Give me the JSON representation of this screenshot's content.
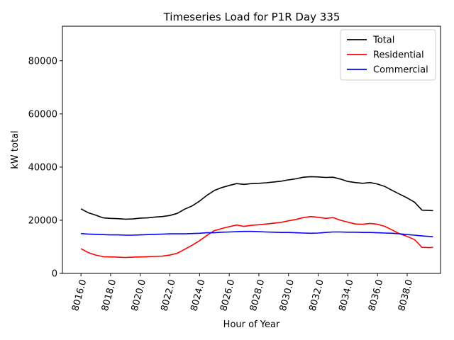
{
  "chart_data": {
    "type": "line",
    "title": "Timeseries Load for P1R   Day 335",
    "xlabel": "Hour of Year",
    "ylabel": "kW total",
    "xlim": [
      8014.75,
      8040.25
    ],
    "ylim": [
      0,
      93000
    ],
    "xticks": [
      8016,
      8018,
      8020,
      8022,
      8024,
      8026,
      8028,
      8030,
      8032,
      8034,
      8036,
      8038
    ],
    "xtick_labels": [
      "8016.0",
      "8018.0",
      "8020.0",
      "8022.0",
      "8024.0",
      "8026.0",
      "8028.0",
      "8030.0",
      "8032.0",
      "8034.0",
      "8036.0",
      "8038.0"
    ],
    "yticks": [
      0,
      20000,
      40000,
      60000,
      80000
    ],
    "ytick_labels": [
      "0",
      "20000",
      "40000",
      "60000",
      "80000"
    ],
    "legend_position": "top-right",
    "series": [
      {
        "name": "Total",
        "color": "#000000",
        "points": [
          [
            8016,
            24300
          ],
          [
            8016.5,
            22800
          ],
          [
            8017,
            21900
          ],
          [
            8017.5,
            20900
          ],
          [
            8018,
            20700
          ],
          [
            8018.5,
            20600
          ],
          [
            8019,
            20400
          ],
          [
            8019.5,
            20500
          ],
          [
            8020,
            20800
          ],
          [
            8020.5,
            20900
          ],
          [
            8021,
            21200
          ],
          [
            8021.5,
            21400
          ],
          [
            8022,
            21800
          ],
          [
            8022.5,
            22600
          ],
          [
            8023,
            24200
          ],
          [
            8023.5,
            25400
          ],
          [
            8024,
            27200
          ],
          [
            8024.5,
            29400
          ],
          [
            8025,
            31200
          ],
          [
            8025.5,
            32300
          ],
          [
            8026,
            33100
          ],
          [
            8026.5,
            33800
          ],
          [
            8027,
            33500
          ],
          [
            8027.5,
            33800
          ],
          [
            8028,
            33900
          ],
          [
            8028.5,
            34100
          ],
          [
            8029,
            34400
          ],
          [
            8029.5,
            34700
          ],
          [
            8030,
            35200
          ],
          [
            8030.5,
            35600
          ],
          [
            8031,
            36200
          ],
          [
            8031.5,
            36400
          ],
          [
            8032,
            36300
          ],
          [
            8032.5,
            36100
          ],
          [
            8033,
            36200
          ],
          [
            8033.5,
            35500
          ],
          [
            8034,
            34600
          ],
          [
            8034.5,
            34200
          ],
          [
            8035,
            33900
          ],
          [
            8035.5,
            34200
          ],
          [
            8036,
            33600
          ],
          [
            8036.5,
            32700
          ],
          [
            8037,
            31200
          ],
          [
            8037.5,
            29800
          ],
          [
            8038,
            28400
          ],
          [
            8038.5,
            26800
          ],
          [
            8039,
            23800
          ],
          [
            8039.5,
            23700
          ],
          [
            8039.75,
            23600
          ]
        ]
      },
      {
        "name": "Residential",
        "color": "#ff0000",
        "points": [
          [
            8016,
            9300
          ],
          [
            8016.5,
            7800
          ],
          [
            8017,
            6900
          ],
          [
            8017.5,
            6300
          ],
          [
            8018,
            6200
          ],
          [
            8018.5,
            6100
          ],
          [
            8019,
            6000
          ],
          [
            8019.5,
            6100
          ],
          [
            8020,
            6200
          ],
          [
            8020.5,
            6300
          ],
          [
            8021,
            6400
          ],
          [
            8021.5,
            6500
          ],
          [
            8022,
            6900
          ],
          [
            8022.5,
            7600
          ],
          [
            8023,
            9100
          ],
          [
            8023.5,
            10600
          ],
          [
            8024,
            12300
          ],
          [
            8024.5,
            14300
          ],
          [
            8025,
            16100
          ],
          [
            8025.5,
            16900
          ],
          [
            8026,
            17600
          ],
          [
            8026.5,
            18200
          ],
          [
            8027,
            17700
          ],
          [
            8027.5,
            18100
          ],
          [
            8028,
            18300
          ],
          [
            8028.5,
            18600
          ],
          [
            8029,
            18900
          ],
          [
            8029.5,
            19200
          ],
          [
            8030,
            19800
          ],
          [
            8030.5,
            20300
          ],
          [
            8031,
            21000
          ],
          [
            8031.5,
            21400
          ],
          [
            8032,
            21100
          ],
          [
            8032.5,
            20700
          ],
          [
            8033,
            21000
          ],
          [
            8033.5,
            20000
          ],
          [
            8034,
            19300
          ],
          [
            8034.5,
            18600
          ],
          [
            8035,
            18500
          ],
          [
            8035.5,
            18800
          ],
          [
            8036,
            18500
          ],
          [
            8036.5,
            17700
          ],
          [
            8037,
            16300
          ],
          [
            8037.5,
            14900
          ],
          [
            8038,
            13900
          ],
          [
            8038.5,
            12700
          ],
          [
            8039,
            9800
          ],
          [
            8039.5,
            9700
          ],
          [
            8039.75,
            9800
          ]
        ]
      },
      {
        "name": "Commercial",
        "color": "#0000ff",
        "points": [
          [
            8016,
            15000
          ],
          [
            8016.5,
            14800
          ],
          [
            8017,
            14700
          ],
          [
            8017.5,
            14600
          ],
          [
            8018,
            14500
          ],
          [
            8018.5,
            14500
          ],
          [
            8019,
            14400
          ],
          [
            8019.5,
            14400
          ],
          [
            8020,
            14500
          ],
          [
            8020.5,
            14600
          ],
          [
            8021,
            14700
          ],
          [
            8021.5,
            14800
          ],
          [
            8022,
            14900
          ],
          [
            8022.5,
            14900
          ],
          [
            8023,
            14900
          ],
          [
            8023.5,
            15000
          ],
          [
            8024,
            15100
          ],
          [
            8024.5,
            15300
          ],
          [
            8025,
            15300
          ],
          [
            8025.5,
            15500
          ],
          [
            8026,
            15600
          ],
          [
            8026.5,
            15700
          ],
          [
            8027,
            15800
          ],
          [
            8027.5,
            15800
          ],
          [
            8028,
            15700
          ],
          [
            8028.5,
            15600
          ],
          [
            8029,
            15500
          ],
          [
            8029.5,
            15400
          ],
          [
            8030,
            15400
          ],
          [
            8030.5,
            15300
          ],
          [
            8031,
            15200
          ],
          [
            8031.5,
            15100
          ],
          [
            8032,
            15200
          ],
          [
            8032.5,
            15400
          ],
          [
            8033,
            15600
          ],
          [
            8033.5,
            15600
          ],
          [
            8034,
            15500
          ],
          [
            8034.5,
            15500
          ],
          [
            8035,
            15400
          ],
          [
            8035.5,
            15400
          ],
          [
            8036,
            15300
          ],
          [
            8036.5,
            15200
          ],
          [
            8037,
            15100
          ],
          [
            8037.5,
            14900
          ],
          [
            8038,
            14600
          ],
          [
            8038.5,
            14400
          ],
          [
            8039,
            14100
          ],
          [
            8039.5,
            13900
          ],
          [
            8039.75,
            13800
          ]
        ]
      }
    ]
  }
}
